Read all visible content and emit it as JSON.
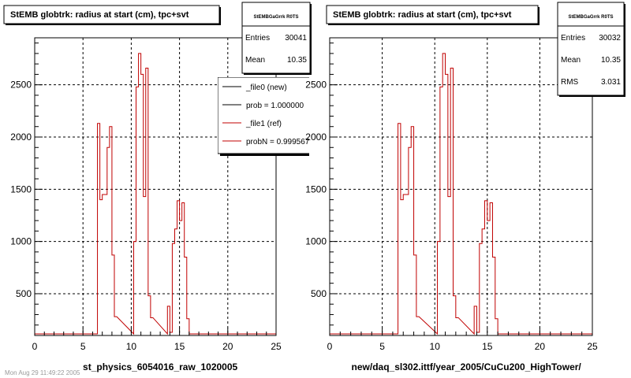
{
  "footer": "Mon Aug 29 11:49:22 2005",
  "chart_data": [
    {
      "type": "histogram",
      "title": "StEMB globtrk: radius at start (cm), tpc+svt",
      "xlabel": "st_physics_6054016_raw_1020005",
      "ylabel": "",
      "xlim": [
        0,
        25
      ],
      "ylim": [
        100,
        2950
      ],
      "x_ticks": [
        0,
        5,
        10,
        15,
        20,
        25
      ],
      "y_ticks": [
        500,
        1000,
        1500,
        2000,
        2500
      ],
      "grid": true,
      "bin_width": 0.25,
      "bins": [
        [
          6.5,
          2130
        ],
        [
          6.75,
          1400
        ],
        [
          7.0,
          1450
        ],
        [
          7.25,
          1450
        ],
        [
          7.5,
          1900
        ],
        [
          7.75,
          2100
        ],
        [
          8.0,
          870
        ],
        [
          8.25,
          280
        ],
        [
          10.25,
          1000
        ],
        [
          10.5,
          2480
        ],
        [
          10.75,
          2800
        ],
        [
          11.0,
          2600
        ],
        [
          11.25,
          1430
        ],
        [
          11.5,
          2660
        ],
        [
          11.75,
          480
        ],
        [
          12.0,
          270
        ],
        [
          13.75,
          380
        ],
        [
          14.0,
          130
        ],
        [
          14.25,
          980
        ],
        [
          14.5,
          1120
        ],
        [
          14.75,
          1390
        ],
        [
          15.0,
          1200
        ],
        [
          15.25,
          1370
        ],
        [
          15.5,
          850
        ],
        [
          15.75,
          260
        ]
      ],
      "series": [
        {
          "name": "_file1 (ref)",
          "color": "#c00000",
          "style": "hist-step"
        }
      ],
      "stats": {
        "header": "StEMBGaGrrk R0TS",
        "entries_label": "Entries",
        "entries": "30041",
        "mean_label": "Mean",
        "mean": "10.35"
      },
      "legend": {
        "placement": "top-right",
        "entries": [
          {
            "label": "_file0 (new)",
            "color": "#000000"
          },
          {
            "label": "prob = 1.000000",
            "color": "#000000"
          },
          {
            "label": "_file1 (ref)",
            "color": "#c00000"
          },
          {
            "label": "probN = 0.999567",
            "color": "#c00000"
          }
        ]
      }
    },
    {
      "type": "histogram",
      "title": "StEMB globtrk: radius at start (cm), tpc+svt",
      "xlabel": "new/daq_sl302.ittf/year_2005/CuCu200_HighTower/",
      "ylabel": "",
      "xlim": [
        0,
        25
      ],
      "ylim": [
        100,
        2950
      ],
      "x_ticks": [
        0,
        5,
        10,
        15,
        20,
        25
      ],
      "y_ticks": [
        500,
        1000,
        1500,
        2000,
        2500
      ],
      "grid": true,
      "bin_width": 0.25,
      "bins": [
        [
          6.5,
          2130
        ],
        [
          6.75,
          1400
        ],
        [
          7.0,
          1450
        ],
        [
          7.25,
          1450
        ],
        [
          7.5,
          1900
        ],
        [
          7.75,
          2100
        ],
        [
          8.0,
          870
        ],
        [
          8.25,
          280
        ],
        [
          10.25,
          1000
        ],
        [
          10.5,
          2480
        ],
        [
          10.75,
          2800
        ],
        [
          11.0,
          2600
        ],
        [
          11.25,
          1430
        ],
        [
          11.5,
          2660
        ],
        [
          11.75,
          480
        ],
        [
          12.0,
          270
        ],
        [
          13.75,
          380
        ],
        [
          14.0,
          130
        ],
        [
          14.25,
          980
        ],
        [
          14.5,
          1120
        ],
        [
          14.75,
          1390
        ],
        [
          15.0,
          1200
        ],
        [
          15.25,
          1370
        ],
        [
          15.5,
          850
        ],
        [
          15.75,
          260
        ]
      ],
      "series": [
        {
          "name": "",
          "color": "#c00000",
          "style": "hist-step"
        }
      ],
      "stats": {
        "header": "StEMBGaGrrk R0TS",
        "entries_label": "Entries",
        "entries": "30032",
        "mean_label": "Mean",
        "mean": "10.35",
        "rms_label": "RMS",
        "rms": "3.031"
      }
    }
  ]
}
